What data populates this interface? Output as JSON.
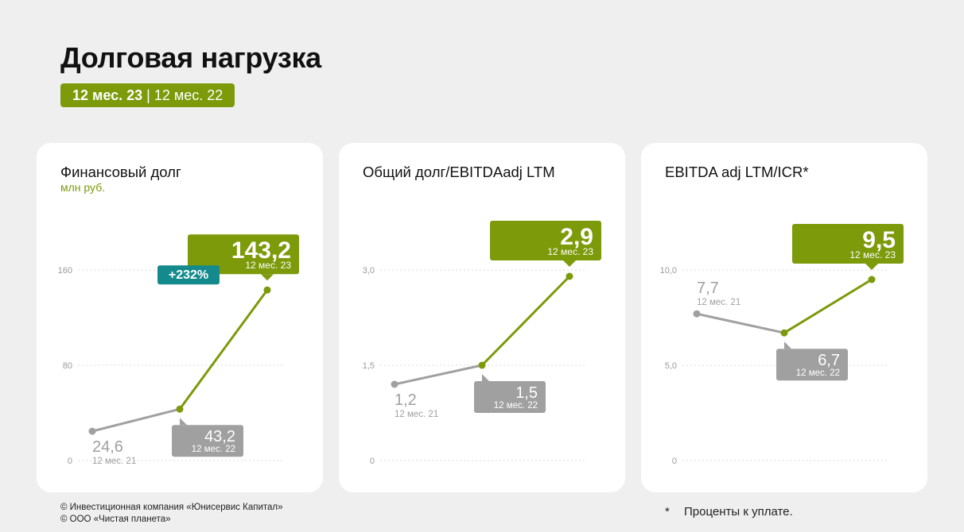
{
  "page": {
    "title": "Долговая нагрузка",
    "period_current": "12 мес. 23",
    "period_separator": "|",
    "period_previous": "12 мес. 22"
  },
  "colors": {
    "accent": "#7c9a0a",
    "grey": "#a0a0a0",
    "teal": "#148a8c",
    "grid": "#d8d8d8",
    "tick": "#9a9a9a"
  },
  "chart_data": [
    {
      "type": "line",
      "title": "Финансовый долг",
      "subtitle": "млн руб.",
      "ylim": [
        0,
        160
      ],
      "yticks": [
        {
          "value": 0,
          "label": "0"
        },
        {
          "value": 80,
          "label": "80"
        },
        {
          "value": 160,
          "label": "160"
        }
      ],
      "grid": true,
      "points": [
        {
          "period": "12 мес. 21",
          "value": 24.6,
          "label": "24,6",
          "style": "plain"
        },
        {
          "period": "12 мес. 22",
          "value": 43.2,
          "label": "43,2",
          "style": "grey-box"
        },
        {
          "period": "12 мес. 23",
          "value": 143.2,
          "label": "143,2",
          "style": "green-box"
        }
      ],
      "change_badge": "+232%"
    },
    {
      "type": "line",
      "title": "Общий долг/EBITDAadj LTM",
      "subtitle": "",
      "ylim": [
        0,
        3.0
      ],
      "yticks": [
        {
          "value": 0,
          "label": "0"
        },
        {
          "value": 1.5,
          "label": "1,5"
        },
        {
          "value": 3.0,
          "label": "3,0"
        }
      ],
      "grid": true,
      "points": [
        {
          "period": "12 мес. 21",
          "value": 1.2,
          "label": "1,2",
          "style": "plain"
        },
        {
          "period": "12 мес. 22",
          "value": 1.5,
          "label": "1,5",
          "style": "grey-box"
        },
        {
          "period": "12 мес. 23",
          "value": 2.9,
          "label": "2,9",
          "style": "green-box"
        }
      ]
    },
    {
      "type": "line",
      "title": "EBITDA adj LTM/ICR*",
      "subtitle": "",
      "ylim": [
        0,
        10.0
      ],
      "yticks": [
        {
          "value": 0,
          "label": "0"
        },
        {
          "value": 5.0,
          "label": "5,0"
        },
        {
          "value": 10.0,
          "label": "10,0"
        }
      ],
      "grid": true,
      "points": [
        {
          "period": "12 мес. 21",
          "value": 7.7,
          "label": "7,7",
          "style": "plain"
        },
        {
          "period": "12 мес. 22",
          "value": 6.7,
          "label": "6,7",
          "style": "grey-box"
        },
        {
          "period": "12 мес. 23",
          "value": 9.5,
          "label": "9,5",
          "style": "green-box"
        }
      ]
    }
  ],
  "footer": {
    "copyright_1": "© Инвестиционная компания «Юнисервис Капитал»",
    "copyright_2": "© ООО «Чистая планета»",
    "footnote_star": "*",
    "footnote_text": "Проценты к уплате."
  }
}
